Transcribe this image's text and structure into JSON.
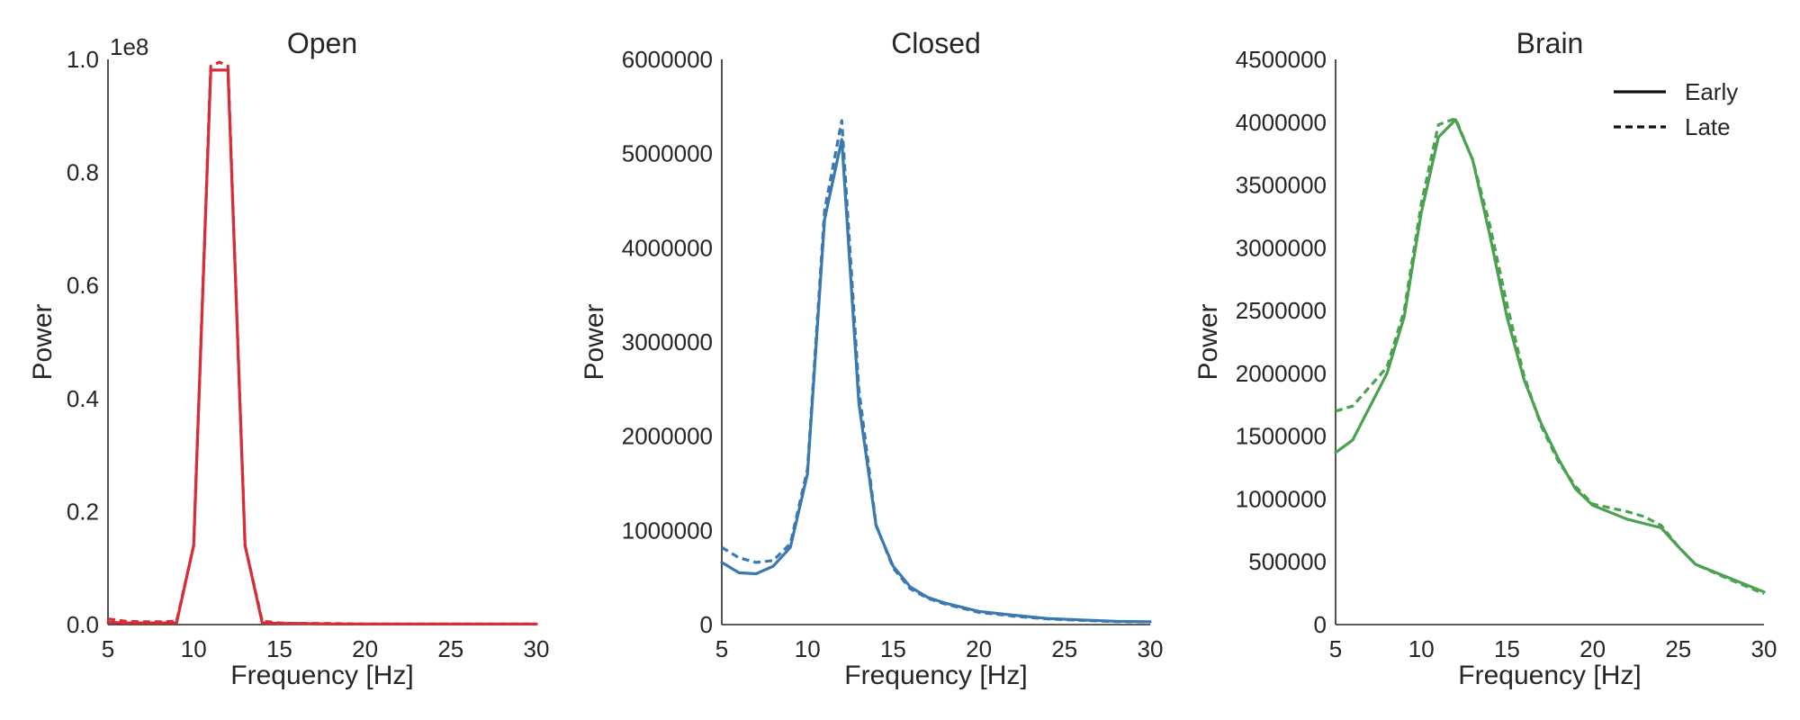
{
  "chart_data": [
    {
      "type": "line",
      "title": "Open",
      "xlabel": "Frequency [Hz]",
      "ylabel": "Power",
      "xlim": [
        5,
        30
      ],
      "ylim": [
        0,
        1.0
      ],
      "y_scale_label": "1e8",
      "color": "#d62d37",
      "xticks": [
        5,
        10,
        15,
        20,
        25,
        30
      ],
      "yticks": [
        0.0,
        0.2,
        0.4,
        0.6,
        0.8,
        1.0
      ],
      "ytick_labels": [
        "0.0",
        "0.2",
        "0.4",
        "0.6",
        "0.8",
        "1.0"
      ],
      "grid": false,
      "series": [
        {
          "name": "Early",
          "style": "solid",
          "x": [
            5,
            6,
            7,
            8,
            9,
            10,
            11,
            12,
            13,
            14,
            15,
            16,
            18,
            20,
            22,
            24,
            26,
            28,
            30
          ],
          "y": [
            0.004,
            0.003,
            0.003,
            0.003,
            0.003,
            0.14,
            0.981,
            0.981,
            0.14,
            0.003,
            0.002,
            0.002,
            0.001,
            0.001,
            0.001,
            0.001,
            0.001,
            0.001,
            0.001
          ]
        },
        {
          "name": "Late",
          "style": "dashed",
          "x": [
            5,
            6,
            7,
            8,
            9,
            10,
            11,
            11.5,
            12,
            13,
            14,
            15,
            16,
            18,
            20,
            22,
            24,
            26,
            28,
            30
          ],
          "y": [
            0.01,
            0.006,
            0.005,
            0.005,
            0.006,
            0.14,
            0.988,
            0.995,
            0.988,
            0.14,
            0.006,
            0.003,
            0.002,
            0.002,
            0.001,
            0.001,
            0.001,
            0.001,
            0.001,
            0.001
          ]
        }
      ]
    },
    {
      "type": "line",
      "title": "Closed",
      "xlabel": "Frequency [Hz]",
      "ylabel": "Power",
      "xlim": [
        5,
        30
      ],
      "ylim": [
        0,
        6000000
      ],
      "color": "#3a78b0",
      "xticks": [
        5,
        10,
        15,
        20,
        25,
        30
      ],
      "yticks": [
        0,
        1000000,
        2000000,
        3000000,
        4000000,
        5000000,
        6000000
      ],
      "ytick_labels": [
        "0",
        "1000000",
        "2000000",
        "3000000",
        "4000000",
        "5000000",
        "6000000"
      ],
      "grid": false,
      "series": [
        {
          "name": "Early",
          "style": "solid",
          "x": [
            5,
            6,
            7,
            8,
            9,
            10,
            11,
            12,
            13,
            14,
            15,
            16,
            17,
            18,
            20,
            22,
            24,
            26,
            28,
            30
          ],
          "y": [
            660000,
            550000,
            540000,
            620000,
            820000,
            1600000,
            4300000,
            5150000,
            2350000,
            1050000,
            620000,
            400000,
            290000,
            230000,
            140000,
            100000,
            65000,
            50000,
            35000,
            30000
          ]
        },
        {
          "name": "Late",
          "style": "dashed",
          "x": [
            5,
            6,
            7,
            8,
            9,
            10,
            11,
            12,
            13,
            14,
            15,
            16,
            17,
            18,
            20,
            22,
            24,
            26,
            28,
            30
          ],
          "y": [
            820000,
            710000,
            660000,
            680000,
            860000,
            1650000,
            4400000,
            5350000,
            2500000,
            1060000,
            600000,
            380000,
            280000,
            220000,
            130000,
            90000,
            60000,
            45000,
            32000,
            28000
          ]
        }
      ]
    },
    {
      "type": "line",
      "title": "Brain",
      "xlabel": "Frequency [Hz]",
      "ylabel": "Power",
      "xlim": [
        5,
        30
      ],
      "ylim": [
        0,
        4500000
      ],
      "color": "#4aa150",
      "xticks": [
        5,
        10,
        15,
        20,
        25,
        30
      ],
      "yticks": [
        0,
        500000,
        1000000,
        1500000,
        2000000,
        2500000,
        3000000,
        3500000,
        4000000,
        4500000
      ],
      "ytick_labels": [
        "0",
        "500000",
        "1000000",
        "1500000",
        "2000000",
        "2500000",
        "3000000",
        "3500000",
        "4000000",
        "4500000"
      ],
      "grid": false,
      "legend": {
        "position": "top-right",
        "entries": [
          {
            "label": "Early",
            "style": "solid"
          },
          {
            "label": "Late",
            "style": "dashed"
          }
        ]
      },
      "series": [
        {
          "name": "Early",
          "style": "solid",
          "x": [
            5,
            6,
            8,
            9,
            10,
            11,
            12,
            13,
            14,
            15,
            16,
            17,
            18,
            19,
            20,
            22,
            24,
            25,
            26,
            28,
            30
          ],
          "y": [
            1370000,
            1470000,
            2000000,
            2450000,
            3280000,
            3880000,
            4020000,
            3700000,
            3100000,
            2450000,
            1950000,
            1600000,
            1320000,
            1080000,
            950000,
            840000,
            770000,
            620000,
            480000,
            370000,
            260000
          ]
        },
        {
          "name": "Late",
          "style": "dashed",
          "x": [
            5,
            6,
            8,
            9,
            10,
            11,
            12,
            13,
            14,
            15,
            16,
            17,
            18,
            19,
            20,
            22,
            23,
            24,
            25,
            26,
            28,
            30
          ],
          "y": [
            1700000,
            1740000,
            2050000,
            2500000,
            3350000,
            3980000,
            4030000,
            3700000,
            3180000,
            2550000,
            1980000,
            1580000,
            1300000,
            1100000,
            960000,
            900000,
            860000,
            790000,
            620000,
            480000,
            360000,
            245000
          ]
        }
      ]
    }
  ]
}
